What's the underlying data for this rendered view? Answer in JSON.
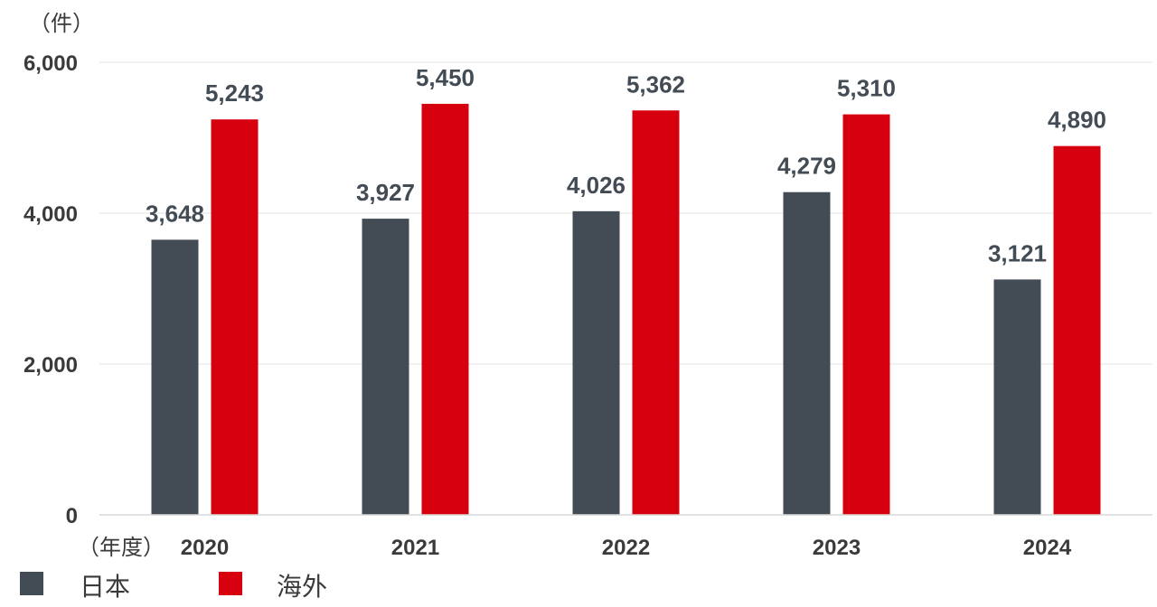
{
  "chart_data": {
    "type": "bar",
    "title": "",
    "y_unit_label": "（件）",
    "x_unit_label": "（年度）",
    "categories": [
      "2020",
      "2021",
      "2022",
      "2023",
      "2024"
    ],
    "series": [
      {
        "name": "日本",
        "color": "#434c55",
        "values": [
          3648,
          3927,
          4026,
          4279,
          3121
        ]
      },
      {
        "name": "海外",
        "color": "#d7000f",
        "values": [
          5243,
          5450,
          5362,
          5310,
          4890
        ]
      }
    ],
    "data_labels": [
      [
        "3,648",
        "3,927",
        "4,026",
        "4,279",
        "3,121"
      ],
      [
        "5,243",
        "5,450",
        "5,362",
        "5,310",
        "4,890"
      ]
    ],
    "ylim": [
      0,
      6000
    ],
    "yticks": [
      0,
      2000,
      4000,
      6000
    ],
    "ytick_labels": [
      "0",
      "2,000",
      "4,000",
      "6,000"
    ],
    "grid": true,
    "legend_position": "bottom-left"
  }
}
